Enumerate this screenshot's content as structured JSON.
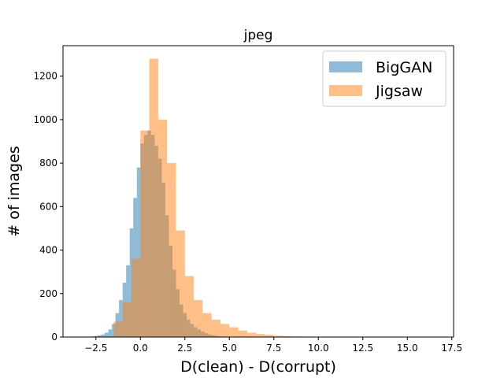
{
  "chart_data": {
    "type": "histogram",
    "title": "jpeg",
    "xlabel": "D(clean) - D(corrupt)",
    "ylabel": "# of images",
    "xlim": [
      -4.35,
      17.6
    ],
    "ylim": [
      0,
      1340
    ],
    "xticks": [
      -2.5,
      0.0,
      2.5,
      5.0,
      7.5,
      10.0,
      12.5,
      15.0,
      17.5
    ],
    "xtick_labels": [
      "−2.5",
      "0.0",
      "2.5",
      "5.0",
      "7.5",
      "10.0",
      "12.5",
      "15.0",
      "17.5"
    ],
    "yticks": [
      0,
      200,
      400,
      600,
      800,
      1000,
      1200
    ],
    "ytick_labels": [
      "0",
      "200",
      "400",
      "600",
      "800",
      "1000",
      "1200"
    ],
    "grid": false,
    "legend_position": "top-right",
    "series": [
      {
        "name": "BigGAN",
        "color": "#1f77b4",
        "alpha": 0.5,
        "bin_start": -2.8,
        "bin_width": 0.2,
        "counts": [
          3,
          5,
          8,
          12,
          20,
          35,
          60,
          110,
          170,
          250,
          330,
          500,
          640,
          780,
          890,
          930,
          950,
          930,
          880,
          820,
          710,
          560,
          420,
          310,
          220,
          150,
          110,
          80,
          60,
          45,
          35,
          25,
          18,
          12,
          8,
          5,
          3,
          2
        ]
      },
      {
        "name": "Jigsaw",
        "color": "#ff7f0e",
        "alpha": 0.5,
        "bin_start": -1.5,
        "bin_width": 0.5,
        "counts": [
          70,
          160,
          360,
          950,
          1280,
          1000,
          800,
          490,
          280,
          170,
          110,
          80,
          60,
          45,
          30,
          20,
          14,
          10,
          6,
          4,
          3,
          2,
          1,
          1,
          1,
          1,
          1,
          1,
          1,
          0,
          0,
          0,
          0,
          0,
          0,
          0,
          0,
          0
        ]
      }
    ]
  }
}
